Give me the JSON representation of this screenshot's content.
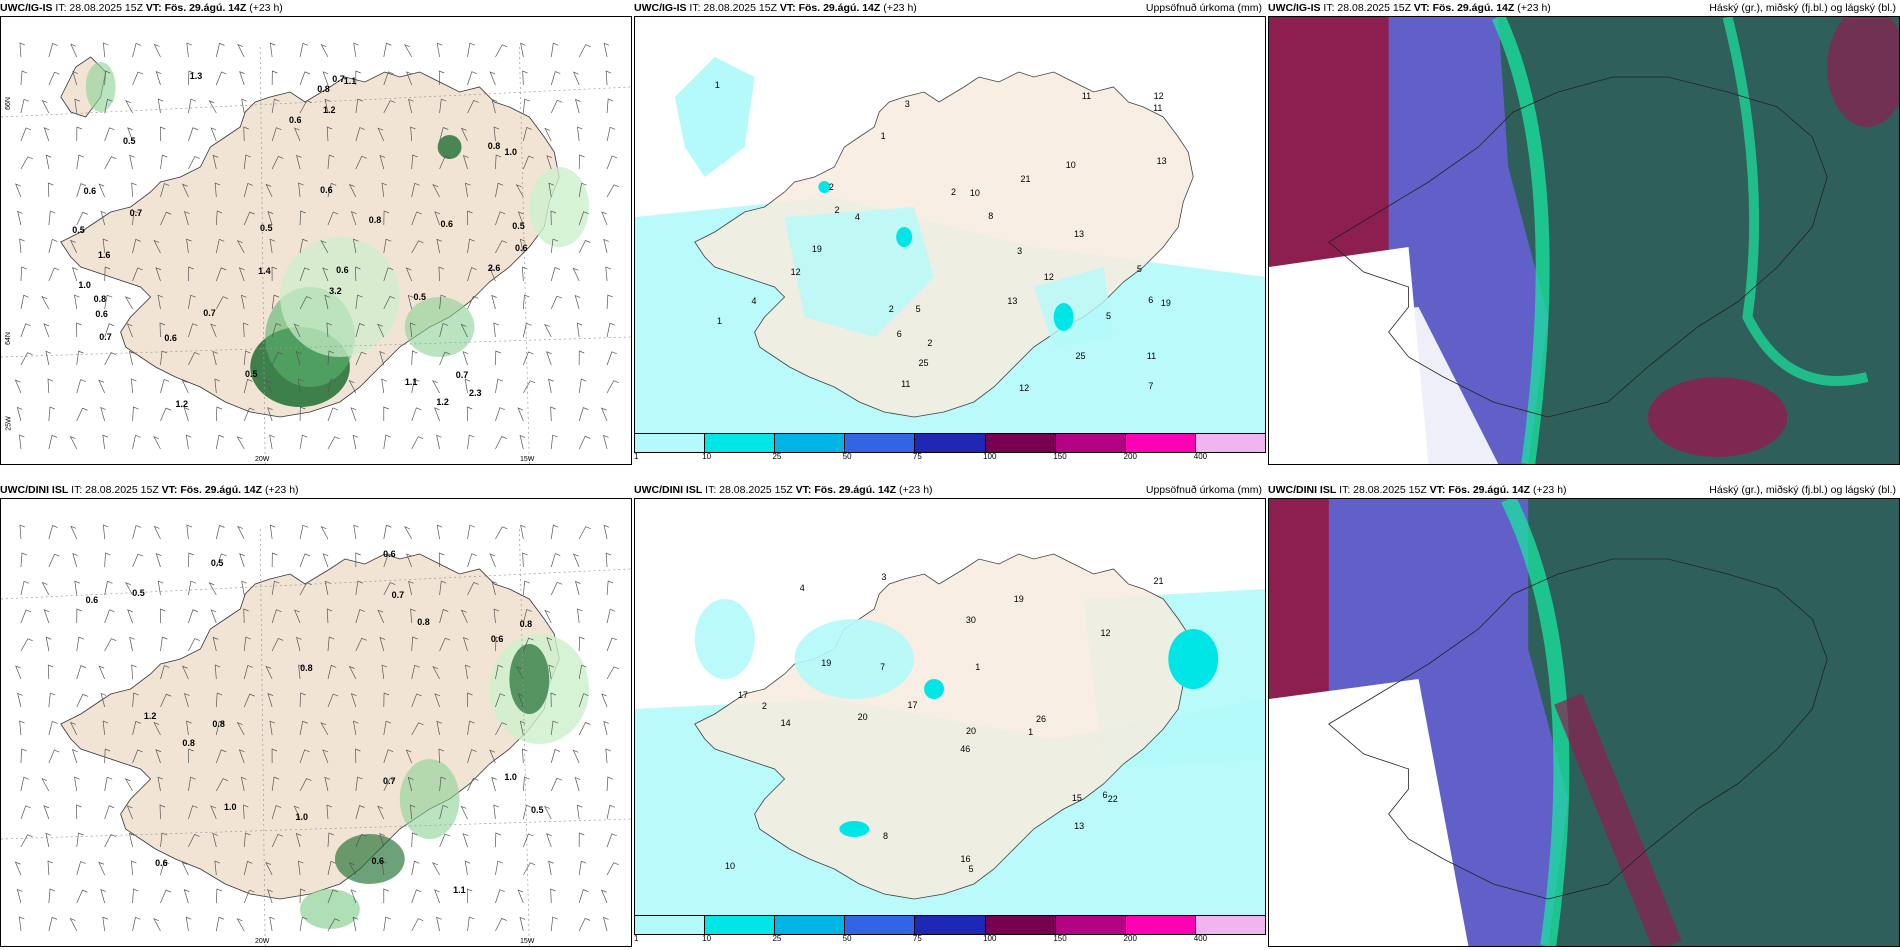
{
  "panels": {
    "p1": {
      "model": "UWC/IG-IS",
      "it": "IT: 28.08.2025 15Z",
      "vt": "VT: Fös. 29.ágú. 14Z",
      "lead": "(+23 h)",
      "right": ""
    },
    "p2": {
      "model": "UWC/IG-IS",
      "it": "IT: 28.08.2025 15Z",
      "vt": "VT: Fös. 29.ágú. 14Z",
      "lead": "(+23 h)",
      "right": "Uppsöfnuð úrkoma (mm)"
    },
    "p3": {
      "model": "UWC/IG-IS",
      "it": "IT: 28.08.2025 15Z",
      "vt": "VT: Fös. 29.ágú. 14Z",
      "lead": "(+23 h)",
      "right": "Háský (gr.), miðský (fj.bl.) og lágský (bl.)"
    },
    "p4": {
      "model": "UWC/DINI ISL",
      "it": "IT: 28.08.2025 15Z",
      "vt": "VT: Fös. 29.ágú. 14Z",
      "lead": "(+23 h)",
      "right": ""
    },
    "p5": {
      "model": "UWC/DINI ISL",
      "it": "IT: 28.08.2025 15Z",
      "vt": "VT: Fös. 29.ágú. 14Z",
      "lead": "(+23 h)",
      "right": "Uppsöfnuð úrkoma (mm)"
    },
    "p6": {
      "model": "UWC/DINI ISL",
      "it": "IT: 28.08.2025 15Z",
      "vt": "VT: Fös. 29.ágú. 14Z",
      "lead": "(+23 h)",
      "right": "Háský (gr.), miðský (fj.bl.) og lágský (bl.)"
    }
  },
  "axis": {
    "lon_20w": "20W",
    "lon_15w": "15W",
    "lat_66n": "66N",
    "lat_64n": "64N",
    "lat_25w": "25W"
  },
  "colorbar": {
    "ticks": [
      "1",
      "10",
      "25",
      "50",
      "75",
      "100",
      "150",
      "200",
      "400"
    ],
    "colors": [
      "#b4fafa",
      "#00e6e6",
      "#00b4e6",
      "#3264e6",
      "#1e28b4",
      "#780050",
      "#b40082",
      "#ff00b4",
      "#f0b4f0"
    ]
  },
  "colors": {
    "land": "#f2e4d4",
    "sea": "#ffffff",
    "precip_light": "#ccf0cc",
    "precip_dark": "#1e6e32",
    "accum": "#b4fafa",
    "high_cloud": "#2f5f5a",
    "mid_cloud": "#6060c8",
    "low_cloud": "#8c1e50"
  },
  "values": {
    "p1": [
      "0.5",
      "1.4",
      "0.5",
      "0.7",
      "1.2",
      "1.0",
      "0.6",
      "0.7",
      "0.6",
      "0.5",
      "0.6",
      "0.7",
      "0.5",
      "0.7",
      "0.5",
      "1.0",
      "0.6",
      "0.8",
      "0.6",
      "1.1",
      "1.6",
      "1.2",
      "1.3",
      "0.8",
      "0.7",
      "0.6",
      "0.5",
      "1.2",
      "3.2",
      "2.6",
      "0.6",
      "2.3",
      "1.1",
      "0.8",
      "0.8",
      "0.6"
    ],
    "p2": [
      "13",
      "12",
      "12",
      "19",
      "6",
      "4",
      "13",
      "11",
      "3",
      "6",
      "5",
      "13",
      "2",
      "21",
      "25",
      "19",
      "2",
      "1",
      "12",
      "11",
      "10",
      "25",
      "5",
      "11",
      "2",
      "1",
      "2",
      "4",
      "8",
      "12",
      "10",
      "11",
      "7",
      "2",
      "3",
      "5",
      "1"
    ],
    "p4": [
      "0.6",
      "0.8",
      "0.5",
      "0.6",
      "1.1",
      "0.6",
      "0.7",
      "0.7",
      "1.0",
      "0.8",
      "0.6",
      "1.0",
      "0.5",
      "0.6",
      "1.2",
      "0.5",
      "0.8",
      "0.8",
      "1.0",
      "0.8"
    ],
    "p5": [
      "1",
      "26",
      "22",
      "19",
      "30",
      "14",
      "15",
      "17",
      "46",
      "16",
      "20",
      "7",
      "12",
      "8",
      "21",
      "10",
      "6",
      "19",
      "17",
      "20",
      "13",
      "3",
      "2",
      "1",
      "4",
      "5"
    ]
  }
}
